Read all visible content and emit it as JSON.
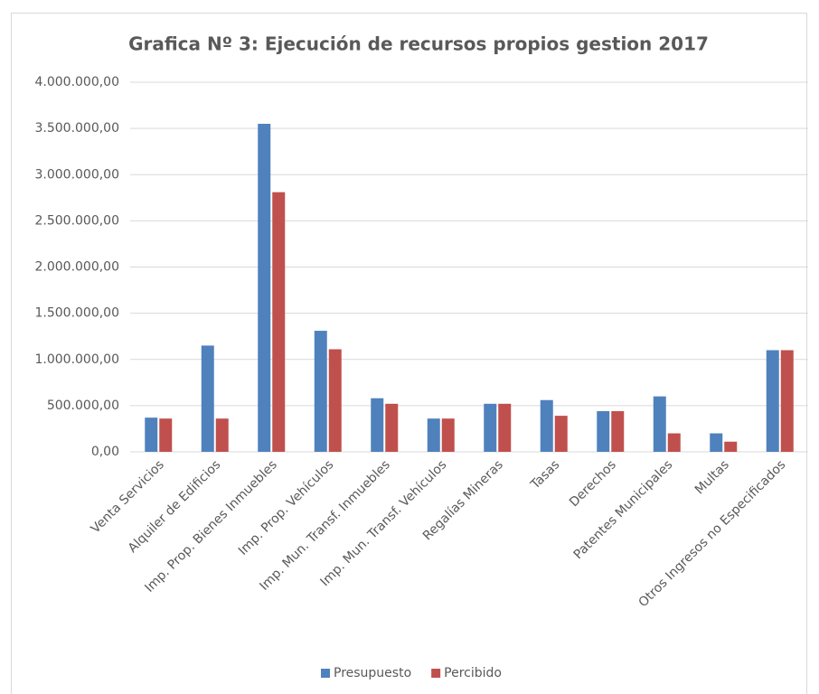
{
  "chart_data": {
    "type": "bar",
    "title": "Grafica Nº 3: Ejecución de recursos propios gestion 2017",
    "categories": [
      "Venta Servicios",
      "Alquiler de Edificios",
      "Imp. Prop. Bienes Inmuebles",
      "Imp. Prop. Vehículos",
      "Imp. Mun. Transf. Inmuebles",
      "Imp. Mun. Transf. Vehículos",
      "Regalías Mineras",
      "Tasas",
      "Derechos",
      "Patentes Municipales",
      "Multas",
      "Otros Ingresos no Especificados"
    ],
    "series": [
      {
        "name": "Presupuesto",
        "color": "#4f81bd",
        "values": [
          370000,
          1150000,
          3550000,
          1310000,
          580000,
          360000,
          520000,
          560000,
          440000,
          600000,
          200000,
          1100000
        ]
      },
      {
        "name": "Percibido",
        "color": "#c0504d",
        "values": [
          360000,
          360000,
          2810000,
          1110000,
          520000,
          360000,
          520000,
          390000,
          440000,
          200000,
          110000,
          1100000
        ]
      }
    ],
    "ylim": [
      0,
      4000000
    ],
    "yticks": [
      {
        "value": 0,
        "label": "0,00"
      },
      {
        "value": 500000,
        "label": "500.000,00"
      },
      {
        "value": 1000000,
        "label": "1.000.000,00"
      },
      {
        "value": 1500000,
        "label": "1.500.000,00"
      },
      {
        "value": 2000000,
        "label": "2.000.000,00"
      },
      {
        "value": 2500000,
        "label": "2.500.000,00"
      },
      {
        "value": 3000000,
        "label": "3.000.000,00"
      },
      {
        "value": 3500000,
        "label": "3.500.000,00"
      },
      {
        "value": 4000000,
        "label": "4.000.000,00"
      }
    ],
    "grid": true,
    "legend": "bottom"
  }
}
